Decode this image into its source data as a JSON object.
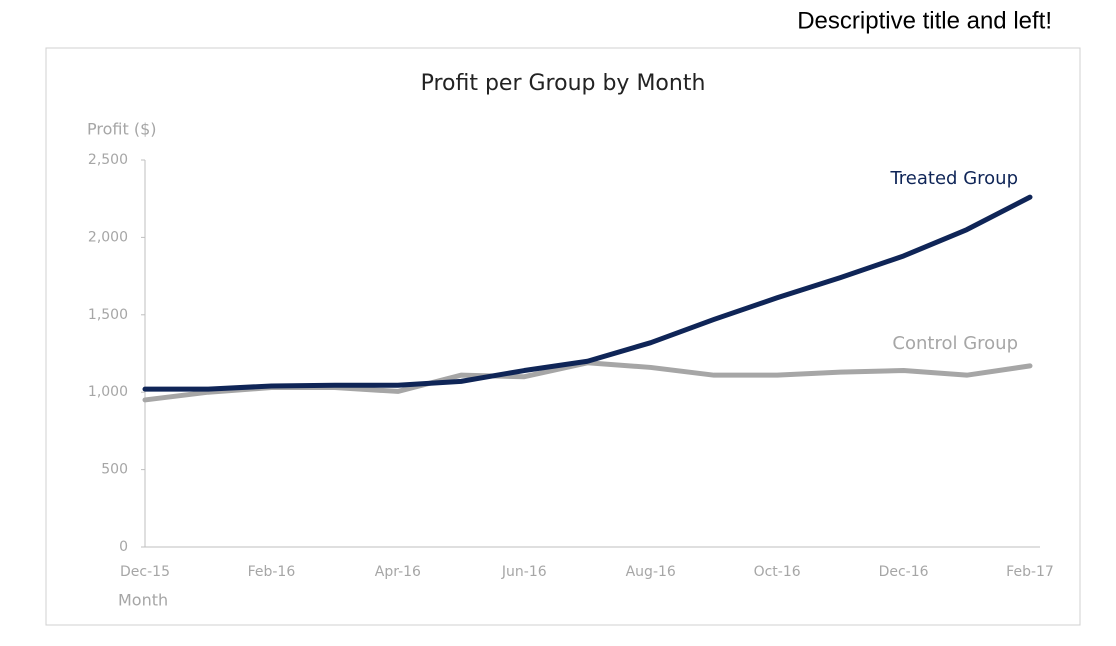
{
  "annotation": "Descriptive title and left!",
  "chart_data": {
    "type": "line",
    "title": "Profit per Group by Month",
    "y_label": "Profit ($)",
    "x_label": "Month",
    "categories": [
      "Dec-15",
      null,
      "Feb-16",
      null,
      "Apr-16",
      null,
      "Jun-16",
      null,
      "Aug-16",
      null,
      "Oct-16",
      null,
      "Dec-16",
      null,
      "Feb-17"
    ],
    "series": [
      {
        "name": "Treated Group",
        "color": "#0f2557",
        "values": [
          1020,
          1020,
          1040,
          1045,
          1045,
          1070,
          1140,
          1200,
          1320,
          1470,
          1610,
          1740,
          1880,
          2050,
          2260
        ]
      },
      {
        "name": "Control Group",
        "color": "#a6a6a6",
        "values": [
          950,
          1000,
          1030,
          1030,
          1005,
          1110,
          1100,
          1190,
          1160,
          1110,
          1110,
          1130,
          1140,
          1110,
          1170
        ]
      }
    ],
    "ylim": [
      0,
      2500
    ],
    "yticks": [
      0,
      500,
      {
        "value": 1000,
        "label": "1,000"
      },
      {
        "value": 1500,
        "label": "1,500"
      },
      {
        "value": 2000,
        "label": "2,000"
      },
      {
        "value": 2500,
        "label": "2,500"
      }
    ],
    "grid": false
  }
}
